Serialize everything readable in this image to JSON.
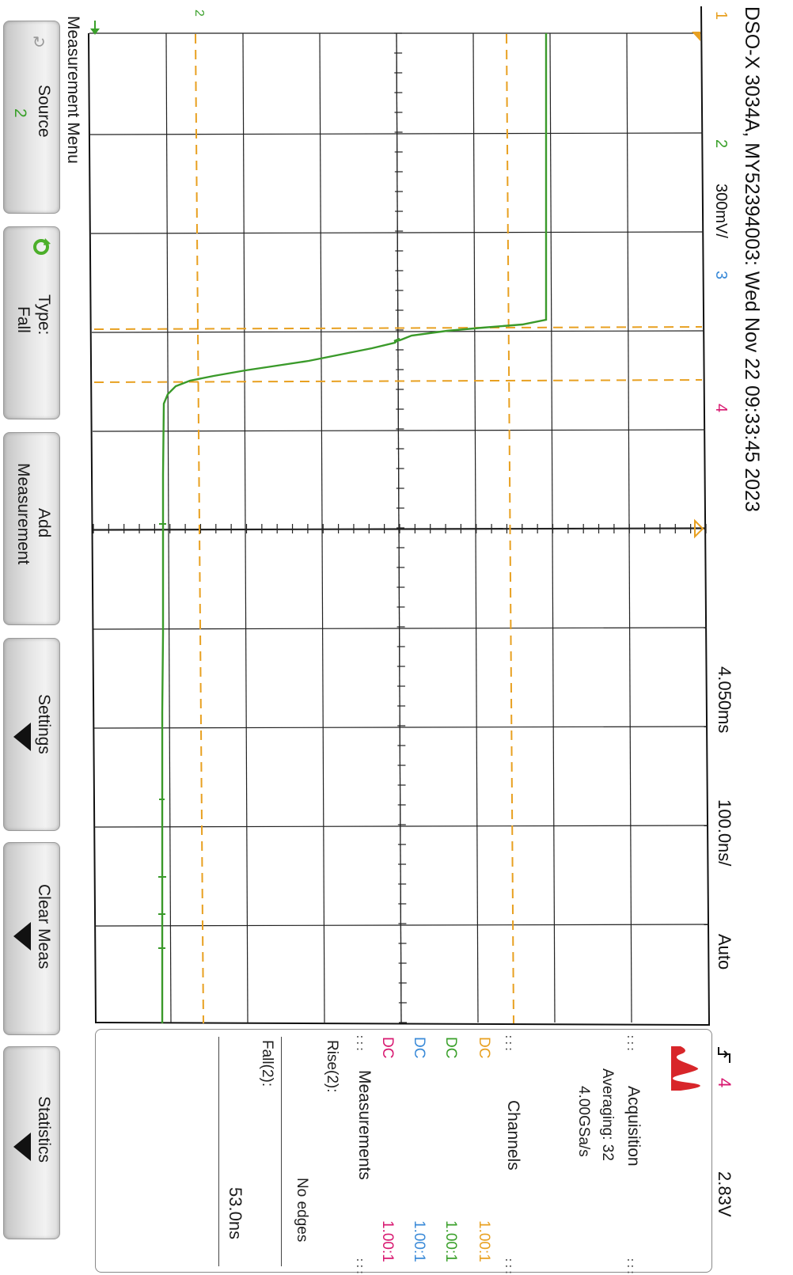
{
  "header": {
    "model_line": "DSO-X 3034A, MY52394003: Wed Nov 22 09:33:45 2023",
    "ch1_label": "1",
    "ch2_label": "2",
    "ch2_scale": "300mV/",
    "ch3_label": "3",
    "ch4_label": "4",
    "time_delay": "4.050ms",
    "time_scale": "100.0ns/",
    "trigger_mode": "Auto",
    "trigger_slope_icon": "rising-edge-icon",
    "trigger_source": "4",
    "trigger_level": "2.83V"
  },
  "waveform": {
    "channel": "2",
    "color": "#3a9a2a",
    "cursor_color": "#e8a020",
    "ch2_marker": "2"
  },
  "side_panel": {
    "acquisition": {
      "title": "Acquisition",
      "averaging": "Averaging: 32",
      "sample_rate": "4.00GSa/s"
    },
    "channels": {
      "title": "Channels",
      "rows": [
        {
          "coupling": "DC",
          "probe": "1.00:1",
          "color": "#e8a020"
        },
        {
          "coupling": "DC",
          "probe": "1.00:1",
          "color": "#3aa02a"
        },
        {
          "coupling": "DC",
          "probe": "1.00:1",
          "color": "#3a8ad8"
        },
        {
          "coupling": "DC",
          "probe": "1.00:1",
          "color": "#d81870"
        }
      ]
    },
    "measurements": {
      "title": "Measurements",
      "rise_label": "Rise(2):",
      "rise_value": "No edges",
      "fall_label": "Fall(2):",
      "fall_value": "53.0ns"
    }
  },
  "softkeys": {
    "menu_title": "Measurement Menu",
    "source_label": "Source",
    "source_value": "2",
    "type_label": "Type:",
    "type_value": "Fall",
    "add_label": "Add",
    "add_label2": "Measurement",
    "settings_label": "Settings",
    "clear_label": "Clear Meas",
    "stats_label": "Statistics"
  }
}
